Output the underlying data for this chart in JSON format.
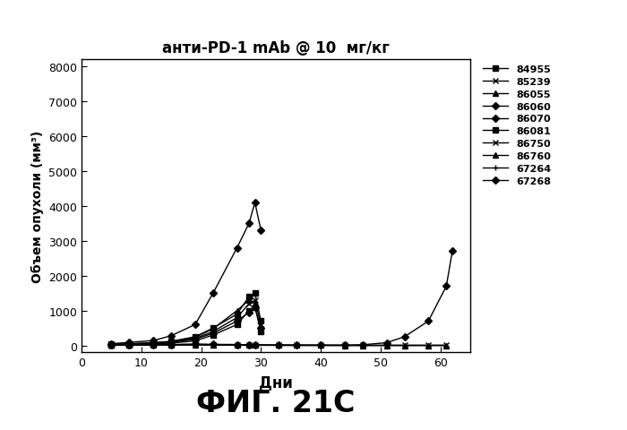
{
  "title": "анти-PD-1 mAb @ 10  мг/кг",
  "xlabel": "Дни",
  "ylabel": "Объем опухоли (мм³)",
  "subtitle": "ФИГ. 21C",
  "xlim": [
    0,
    65
  ],
  "ylim": [
    -200,
    8200
  ],
  "yticks": [
    0,
    1000,
    2000,
    3000,
    4000,
    5000,
    6000,
    7000,
    8000
  ],
  "xticks": [
    0,
    10,
    20,
    30,
    40,
    50,
    60
  ],
  "series": [
    {
      "label": "84955",
      "days": [
        5,
        8,
        12,
        15,
        19,
        22,
        26,
        28,
        29,
        30
      ],
      "volumes": [
        30,
        50,
        80,
        120,
        250,
        500,
        900,
        1400,
        1500,
        700
      ],
      "marker": "s"
    },
    {
      "label": "85239",
      "days": [
        5,
        8,
        12,
        15,
        19,
        22,
        26,
        28,
        29,
        30
      ],
      "volumes": [
        20,
        35,
        60,
        100,
        200,
        400,
        800,
        1200,
        1300,
        600
      ],
      "marker": "x"
    },
    {
      "label": "86055",
      "days": [
        5,
        8,
        12,
        15,
        19,
        22,
        26,
        28,
        29
      ],
      "volumes": [
        25,
        45,
        70,
        110,
        230,
        480,
        1000,
        1300,
        1200
      ],
      "marker": "^"
    },
    {
      "label": "86060",
      "days": [
        5,
        8,
        12,
        15,
        19,
        22,
        26,
        28,
        29,
        30
      ],
      "volumes": [
        15,
        25,
        45,
        85,
        180,
        350,
        700,
        950,
        1100,
        500
      ],
      "marker": "D"
    },
    {
      "label": "86070",
      "days": [
        5,
        8,
        12,
        15,
        19,
        22,
        26,
        28,
        29,
        30
      ],
      "volumes": [
        50,
        90,
        140,
        280,
        600,
        1500,
        2800,
        3500,
        4100,
        3300
      ],
      "marker": "D"
    },
    {
      "label": "86081",
      "days": [
        5,
        8,
        12,
        15,
        19,
        22,
        26,
        28,
        29,
        30
      ],
      "volumes": [
        18,
        28,
        45,
        70,
        130,
        300,
        600,
        1000,
        1100,
        400
      ],
      "marker": "s"
    },
    {
      "label": "86750",
      "days": [
        5,
        8,
        12,
        15,
        19,
        22,
        26,
        28,
        29,
        33,
        36,
        40,
        44,
        47,
        51,
        54,
        58,
        61
      ],
      "volumes": [
        10,
        15,
        20,
        25,
        30,
        25,
        20,
        15,
        12,
        8,
        6,
        5,
        4,
        4,
        4,
        4,
        4,
        4
      ],
      "marker": "x"
    },
    {
      "label": "86760",
      "days": [
        5,
        8,
        12,
        15,
        19,
        22,
        26,
        28,
        29,
        33,
        36,
        40,
        44,
        47,
        51,
        54,
        58,
        61
      ],
      "volumes": [
        8,
        12,
        18,
        22,
        28,
        22,
        18,
        12,
        10,
        7,
        5,
        4,
        3,
        3,
        3,
        3,
        3,
        3
      ],
      "marker": "^"
    },
    {
      "label": "67264",
      "days": [
        5,
        8,
        12,
        15,
        19,
        22,
        26,
        28,
        29,
        33,
        36,
        40,
        44,
        47,
        51,
        54,
        58,
        61
      ],
      "volumes": [
        4,
        6,
        8,
        10,
        12,
        10,
        8,
        6,
        5,
        3,
        2,
        2,
        2,
        2,
        2,
        2,
        2,
        2
      ],
      "marker": "+"
    },
    {
      "label": "67268",
      "days": [
        5,
        8,
        12,
        15,
        19,
        22,
        26,
        28,
        29,
        33,
        36,
        40,
        44,
        47,
        51,
        54,
        58,
        61,
        62
      ],
      "volumes": [
        8,
        12,
        18,
        28,
        38,
        32,
        28,
        22,
        18,
        14,
        12,
        10,
        8,
        20,
        80,
        250,
        700,
        1700,
        2700
      ],
      "marker": "D"
    }
  ],
  "bg_color": "#ffffff",
  "line_color": "#000000"
}
